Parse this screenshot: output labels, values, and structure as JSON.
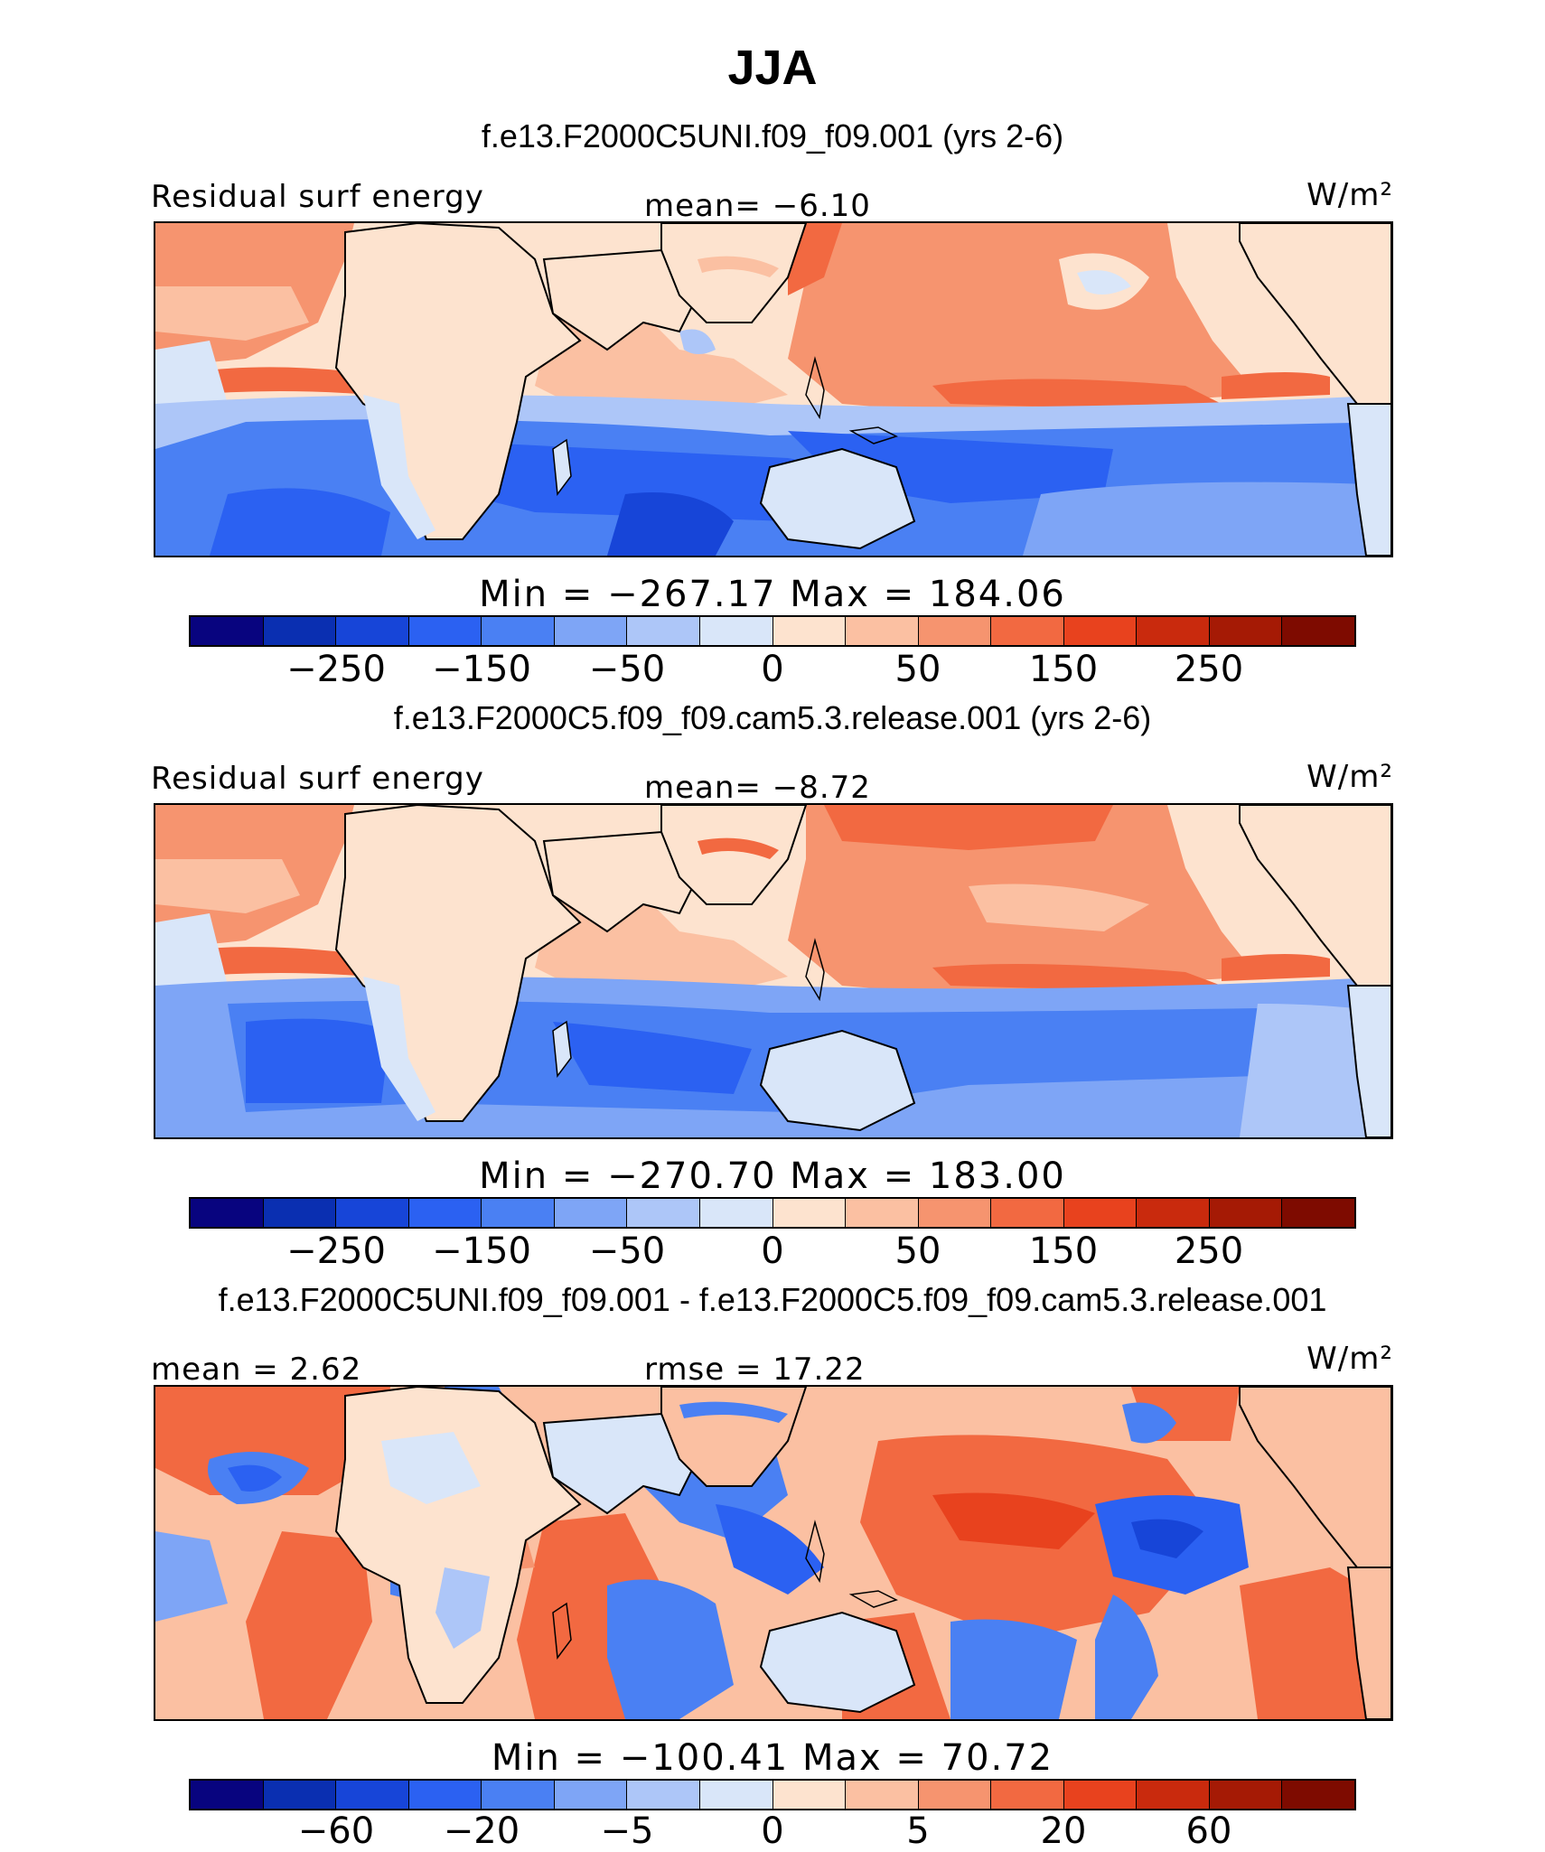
{
  "title": "JJA",
  "colors": {
    "palette": [
      "#08047f",
      "#0a2fb1",
      "#1745d8",
      "#2b61f2",
      "#4a80f3",
      "#7ea5f6",
      "#adc6f8",
      "#d9e6f9",
      "#fde3cf",
      "#fbc0a2",
      "#f6946f",
      "#f26941",
      "#e8421e",
      "#c92a0d",
      "#a51a05",
      "#7e0b00"
    ],
    "land": "#fde7d6",
    "coast": "#000000"
  },
  "panels": [
    {
      "case_title": "f.e13.F2000C5UNI.f09_f09.001 (yrs 2-6)",
      "left_label": "Residual surf energy",
      "center_label": "mean=  −6.10",
      "units": "W/m²",
      "minmax": "Min  =  −267.17  Max  =  184.06",
      "ticks": [
        "−250",
        "−150",
        "−50",
        "0",
        "50",
        "150",
        "250"
      ]
    },
    {
      "case_title": "f.e13.F2000C5.f09_f09.cam5.3.release.001 (yrs 2-6)",
      "left_label": "Residual surf energy",
      "center_label": "mean=  −8.72",
      "units": "W/m²",
      "minmax": "Min  =  −270.70  Max  =  183.00",
      "ticks": [
        "−250",
        "−150",
        "−50",
        "0",
        "50",
        "150",
        "250"
      ]
    },
    {
      "case_title": "f.e13.F2000C5UNI.f09_f09.001 - f.e13.F2000C5.f09_f09.cam5.3.release.001",
      "left_label": "mean =    2.62",
      "center_label": "rmse  =    17.22",
      "units": "W/m²",
      "minmax": "Min  =  −100.41  Max  =    70.72",
      "ticks": [
        "−60",
        "−20",
        "−5",
        "0",
        "5",
        "20",
        "60"
      ]
    }
  ]
}
